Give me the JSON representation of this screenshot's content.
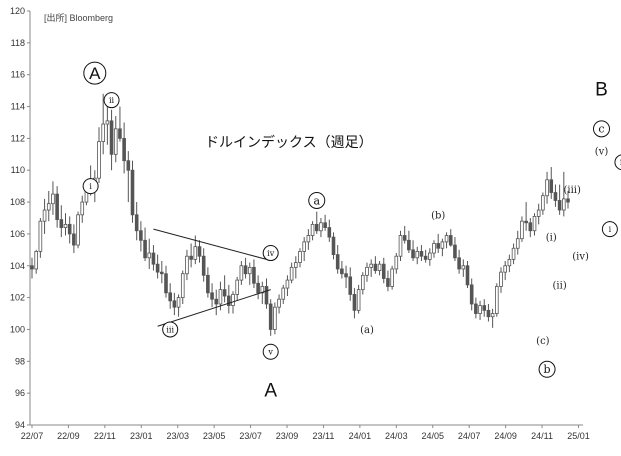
{
  "chart_data": {
    "type": "candlestick",
    "source": "[出所] Bloomberg",
    "title": "ドルインデックス（週足）",
    "ylim": [
      94,
      120
    ],
    "yticks": [
      94,
      96,
      98,
      100,
      102,
      104,
      106,
      108,
      110,
      112,
      114,
      116,
      118,
      120
    ],
    "xticks": [
      "22/07",
      "22/09",
      "22/11",
      "23/01",
      "23/03",
      "23/05",
      "23/07",
      "23/09",
      "23/11",
      "24/01",
      "24/03",
      "24/05",
      "24/07",
      "24/09",
      "24/11",
      "25/01"
    ],
    "grid": false,
    "candle_color": "#555555",
    "weeks": [
      [
        104.0,
        104.5,
        103.2,
        103.8
      ],
      [
        103.8,
        105.0,
        103.5,
        104.9
      ],
      [
        104.9,
        107.0,
        104.5,
        106.8
      ],
      [
        106.8,
        108.2,
        106.0,
        107.5
      ],
      [
        107.5,
        108.7,
        106.8,
        107.9
      ],
      [
        107.9,
        109.3,
        107.2,
        108.5
      ],
      [
        108.5,
        109.0,
        106.4,
        106.9
      ],
      [
        106.9,
        107.8,
        105.8,
        106.4
      ],
      [
        106.4,
        107.3,
        105.9,
        106.6
      ],
      [
        106.6,
        107.1,
        105.4,
        106.0
      ],
      [
        106.0,
        106.6,
        104.8,
        105.3
      ],
      [
        105.3,
        107.4,
        105.1,
        107.2
      ],
      [
        107.2,
        108.4,
        106.7,
        108.0
      ],
      [
        108.0,
        109.4,
        107.8,
        109.2
      ],
      [
        109.2,
        110.3,
        108.4,
        108.9
      ],
      [
        108.9,
        110.0,
        108.0,
        109.5
      ],
      [
        109.5,
        112.7,
        109.2,
        111.8
      ],
      [
        111.8,
        114.8,
        111.0,
        112.9
      ],
      [
        112.9,
        114.3,
        111.6,
        113.1
      ],
      [
        113.1,
        113.8,
        110.0,
        111.0
      ],
      [
        111.0,
        113.4,
        110.5,
        112.6
      ],
      [
        112.6,
        114.0,
        111.8,
        112.0
      ],
      [
        112.0,
        113.0,
        109.8,
        110.6
      ],
      [
        110.6,
        111.2,
        108.0,
        110.0
      ],
      [
        110.0,
        110.6,
        106.7,
        107.2
      ],
      [
        107.2,
        108.0,
        105.6,
        106.2
      ],
      [
        106.2,
        106.8,
        104.9,
        105.6
      ],
      [
        105.6,
        106.4,
        104.3,
        104.5
      ],
      [
        104.5,
        105.7,
        103.8,
        104.8
      ],
      [
        104.8,
        105.3,
        103.7,
        104.1
      ],
      [
        104.1,
        104.7,
        103.2,
        103.6
      ],
      [
        103.6,
        104.3,
        102.9,
        103.5
      ],
      [
        103.5,
        104.0,
        102.0,
        102.3
      ],
      [
        102.3,
        102.9,
        101.3,
        101.8
      ],
      [
        101.8,
        102.3,
        100.9,
        101.4
      ],
      [
        101.4,
        102.2,
        100.8,
        102.0
      ],
      [
        102.0,
        103.7,
        101.6,
        103.5
      ],
      [
        103.5,
        105.0,
        103.1,
        104.6
      ],
      [
        104.6,
        105.4,
        103.9,
        104.4
      ],
      [
        104.4,
        105.9,
        104.1,
        105.2
      ],
      [
        105.2,
        105.6,
        104.2,
        104.6
      ],
      [
        104.6,
        105.1,
        103.0,
        103.4
      ],
      [
        103.4,
        103.9,
        102.0,
        102.3
      ],
      [
        102.3,
        102.9,
        101.4,
        101.9
      ],
      [
        101.9,
        102.5,
        100.9,
        101.6
      ],
      [
        101.6,
        103.0,
        101.2,
        102.5
      ],
      [
        102.5,
        103.4,
        101.7,
        102.1
      ],
      [
        102.1,
        102.8,
        101.0,
        101.5
      ],
      [
        101.5,
        102.4,
        101.0,
        102.2
      ],
      [
        102.2,
        103.3,
        101.8,
        103.1
      ],
      [
        103.1,
        104.3,
        102.8,
        104.0
      ],
      [
        104.0,
        104.5,
        103.2,
        103.5
      ],
      [
        103.5,
        104.2,
        102.8,
        103.9
      ],
      [
        103.9,
        104.4,
        102.6,
        102.9
      ],
      [
        102.9,
        103.4,
        101.9,
        102.3
      ],
      [
        102.3,
        103.0,
        101.6,
        102.7
      ],
      [
        102.7,
        103.2,
        101.3,
        101.6
      ],
      [
        101.6,
        101.9,
        99.6,
        100.0
      ],
      [
        100.0,
        101.7,
        99.7,
        101.4
      ],
      [
        101.4,
        102.2,
        101.0,
        101.9
      ],
      [
        101.9,
        102.8,
        101.6,
        102.6
      ],
      [
        102.6,
        103.4,
        102.1,
        103.1
      ],
      [
        103.1,
        104.2,
        102.9,
        103.9
      ],
      [
        103.9,
        104.6,
        103.2,
        104.2
      ],
      [
        104.2,
        105.1,
        103.9,
        104.9
      ],
      [
        104.9,
        105.8,
        104.3,
        105.5
      ],
      [
        105.5,
        106.3,
        105.0,
        105.9
      ],
      [
        105.9,
        106.8,
        105.6,
        106.6
      ],
      [
        106.6,
        107.4,
        106.0,
        106.2
      ],
      [
        106.2,
        107.0,
        105.8,
        106.7
      ],
      [
        106.7,
        107.2,
        106.2,
        106.4
      ],
      [
        106.4,
        106.9,
        105.5,
        105.8
      ],
      [
        105.8,
        106.1,
        104.4,
        104.7
      ],
      [
        104.7,
        105.3,
        103.5,
        103.8
      ],
      [
        103.8,
        104.3,
        103.2,
        103.5
      ],
      [
        103.5,
        104.0,
        102.6,
        103.3
      ],
      [
        103.3,
        103.9,
        101.8,
        102.2
      ],
      [
        102.2,
        102.6,
        100.7,
        101.2
      ],
      [
        101.2,
        102.8,
        101.0,
        102.5
      ],
      [
        102.5,
        103.6,
        102.2,
        103.4
      ],
      [
        103.4,
        104.2,
        103.0,
        103.9
      ],
      [
        103.9,
        104.4,
        103.3,
        104.1
      ],
      [
        104.1,
        104.6,
        103.5,
        103.7
      ],
      [
        103.7,
        104.3,
        103.4,
        104.1
      ],
      [
        104.1,
        104.5,
        102.9,
        103.2
      ],
      [
        103.2,
        103.7,
        102.4,
        102.7
      ],
      [
        102.7,
        104.0,
        102.5,
        103.8
      ],
      [
        103.8,
        104.8,
        103.5,
        104.6
      ],
      [
        104.6,
        106.2,
        104.3,
        105.9
      ],
      [
        105.9,
        106.5,
        105.4,
        105.6
      ],
      [
        105.6,
        106.2,
        104.8,
        105.0
      ],
      [
        105.0,
        105.6,
        104.3,
        104.5
      ],
      [
        104.5,
        105.2,
        104.1,
        104.9
      ],
      [
        104.9,
        105.3,
        104.3,
        104.6
      ],
      [
        104.6,
        105.0,
        104.2,
        104.4
      ],
      [
        104.4,
        105.1,
        104.0,
        104.8
      ],
      [
        104.8,
        105.6,
        104.5,
        105.4
      ],
      [
        105.4,
        106.0,
        104.8,
        105.1
      ],
      [
        105.1,
        105.7,
        104.6,
        105.5
      ],
      [
        105.5,
        106.1,
        105.1,
        105.9
      ],
      [
        105.9,
        106.3,
        105.2,
        105.3
      ],
      [
        105.3,
        105.8,
        104.3,
        104.5
      ],
      [
        104.5,
        105.0,
        103.5,
        103.8
      ],
      [
        103.8,
        104.4,
        103.3,
        104.0
      ],
      [
        104.0,
        104.3,
        102.6,
        102.8
      ],
      [
        102.8,
        103.2,
        101.2,
        101.6
      ],
      [
        101.6,
        102.0,
        100.7,
        101.0
      ],
      [
        101.0,
        101.8,
        100.6,
        101.5
      ],
      [
        101.5,
        101.9,
        100.8,
        101.2
      ],
      [
        101.2,
        101.6,
        100.5,
        100.8
      ],
      [
        100.8,
        101.3,
        100.1,
        101.0
      ],
      [
        101.0,
        102.9,
        100.8,
        102.7
      ],
      [
        102.7,
        103.9,
        102.3,
        103.6
      ],
      [
        103.6,
        104.3,
        103.1,
        104.0
      ],
      [
        104.0,
        104.7,
        103.6,
        104.4
      ],
      [
        104.4,
        105.4,
        104.1,
        105.1
      ],
      [
        105.1,
        106.2,
        104.7,
        105.7
      ],
      [
        105.7,
        107.1,
        105.5,
        106.8
      ],
      [
        106.8,
        108.0,
        106.2,
        106.7
      ],
      [
        106.7,
        107.0,
        105.8,
        106.2
      ],
      [
        106.2,
        107.3,
        105.9,
        107.1
      ],
      [
        107.1,
        107.9,
        106.6,
        107.5
      ],
      [
        107.5,
        108.6,
        107.2,
        108.4
      ],
      [
        108.4,
        109.9,
        107.9,
        109.4
      ],
      [
        109.4,
        110.2,
        108.2,
        108.6
      ],
      [
        108.6,
        109.1,
        107.7,
        108.1
      ],
      [
        108.1,
        109.1,
        107.2,
        107.5
      ],
      [
        107.5,
        109.9,
        107.1,
        108.2
      ],
      [
        108.2,
        108.7,
        107.6,
        108.0
      ]
    ],
    "annotations": [
      {
        "text": "A",
        "shape": "circle",
        "size": "large",
        "week": 15,
        "price": 116.1
      },
      {
        "text": "ii",
        "shape": "circle",
        "size": "small",
        "week": 19,
        "price": 114.4
      },
      {
        "text": "i",
        "shape": "circle",
        "size": "small",
        "week": 14,
        "price": 109.0
      },
      {
        "text": "iii",
        "shape": "circle",
        "size": "small",
        "week": 33,
        "price": 100.0
      },
      {
        "text": "iv",
        "shape": "circle",
        "size": "small",
        "week": 57,
        "price": 104.8
      },
      {
        "text": "v",
        "shape": "circle",
        "size": "small",
        "week": 57,
        "price": 98.6
      },
      {
        "text": "A",
        "shape": "none",
        "size": "large",
        "week": 57,
        "price": 96.2
      },
      {
        "text": "a",
        "shape": "circle",
        "size": "medium",
        "week": 68,
        "price": 108.1
      },
      {
        "text": "(a)",
        "shape": "none",
        "size": "small",
        "week": 80,
        "price": 100.0
      },
      {
        "text": "(b)",
        "shape": "none",
        "size": "small",
        "week": 97,
        "price": 107.2
      },
      {
        "text": "(c)",
        "shape": "none",
        "size": "small",
        "week": 122,
        "price": 99.3
      },
      {
        "text": "b",
        "shape": "circle",
        "size": "medium",
        "week": 123,
        "price": 97.5
      },
      {
        "text": "(i)",
        "shape": "none",
        "size": "small",
        "week": 124,
        "price": 105.8
      },
      {
        "text": "(ii)",
        "shape": "none",
        "size": "small",
        "week": 126,
        "price": 102.8
      },
      {
        "text": "(iii)",
        "shape": "none",
        "size": "small",
        "week": 129,
        "price": 108.8
      },
      {
        "text": "(iv)",
        "shape": "none",
        "size": "small",
        "week": 131,
        "price": 104.6
      },
      {
        "text": "(v)",
        "shape": "none",
        "size": "small",
        "week": 136,
        "price": 111.2
      },
      {
        "text": "i",
        "shape": "circle",
        "size": "small",
        "week": 138,
        "price": 106.3
      },
      {
        "text": "ii",
        "shape": "circle",
        "size": "small",
        "week": 141,
        "price": 110.5
      },
      {
        "text": "B",
        "shape": "none",
        "size": "large",
        "week": 136,
        "price": 115.1
      },
      {
        "text": "c",
        "shape": "circle",
        "size": "medium",
        "week": 136,
        "price": 112.6
      }
    ],
    "trendlines": [
      {
        "from": [
          29,
          106.3
        ],
        "to": [
          56,
          104.4
        ]
      },
      {
        "from": [
          30,
          100.2
        ],
        "to": [
          57,
          102.5
        ]
      }
    ]
  }
}
